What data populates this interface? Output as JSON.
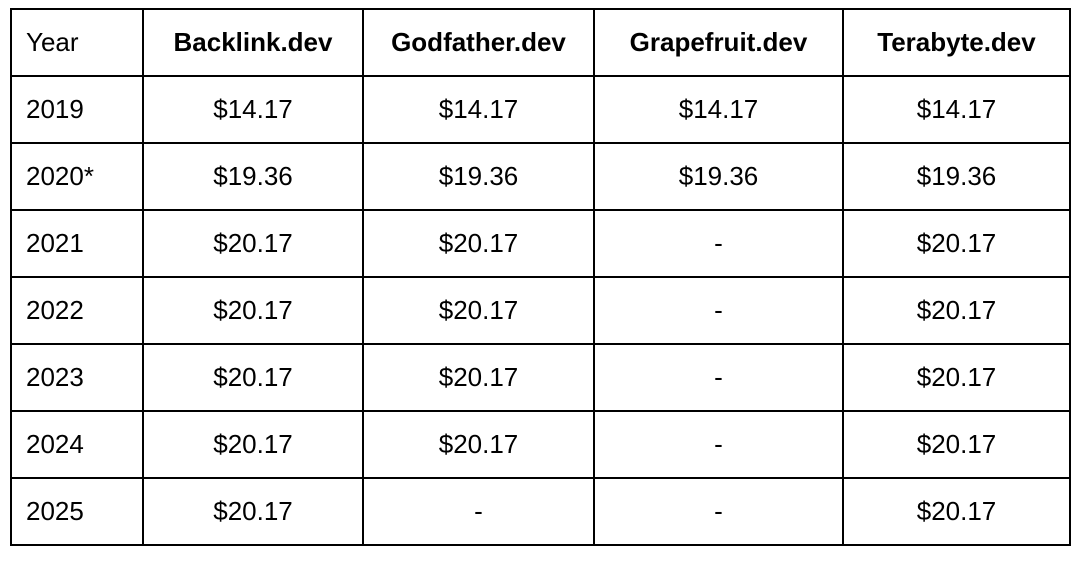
{
  "table": {
    "headers": [
      "Year",
      "Backlink.dev",
      "Godfather.dev",
      "Grapefruit.dev",
      "Terabyte.dev"
    ],
    "rows": [
      [
        "2019",
        "$14.17",
        "$14.17",
        "$14.17",
        "$14.17"
      ],
      [
        "2020*",
        "$19.36",
        "$19.36",
        "$19.36",
        "$19.36"
      ],
      [
        "2021",
        "$20.17",
        "$20.17",
        "-",
        "$20.17"
      ],
      [
        "2022",
        "$20.17",
        "$20.17",
        "-",
        "$20.17"
      ],
      [
        "2023",
        "$20.17",
        "$20.17",
        "-",
        "$20.17"
      ],
      [
        "2024",
        "$20.17",
        "$20.17",
        "-",
        "$20.17"
      ],
      [
        "2025",
        "$20.17",
        "-",
        "-",
        "$20.17"
      ]
    ]
  }
}
